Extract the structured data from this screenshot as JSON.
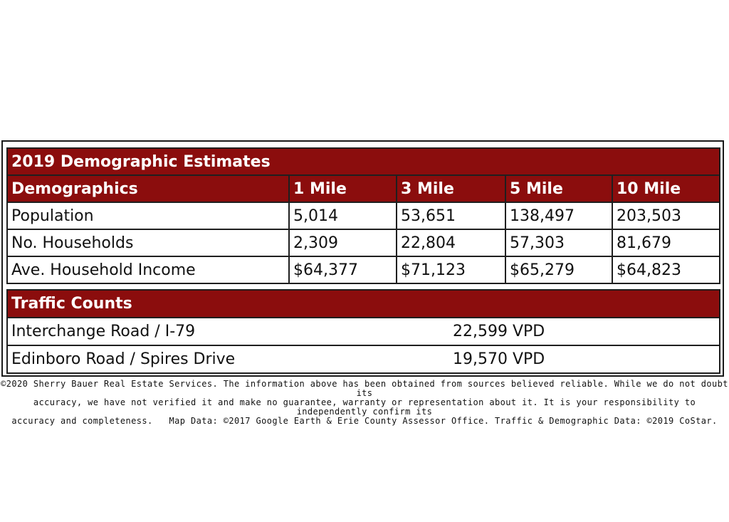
{
  "demographics_table": {
    "title": "2019 Demographic Estimates",
    "headers": [
      "Demographics",
      "1 Mile",
      "3 Mile",
      "5 Mile",
      "10 Mile"
    ],
    "rows": [
      [
        "Population",
        "5,014",
        "53,651",
        "138,497",
        "203,503"
      ],
      [
        "No. Households",
        "2,309",
        "22,804",
        "57,303",
        "81,679"
      ],
      [
        "Ave. Household Income",
        "$64,377",
        "$71,123",
        "$65,279",
        "$64,823"
      ]
    ]
  },
  "traffic_table": {
    "title": "Traffic Counts",
    "rows": [
      [
        "Interchange Road / I-79",
        "22,599 VPD"
      ],
      [
        "Edinboro Road / Spires Drive",
        "19,570 VPD"
      ]
    ]
  },
  "disclaimer": {
    "line1": "©2020 Sherry Bauer Real Estate Services. The information above has been obtained from sources believed reliable. While we do not doubt its",
    "line2": "accuracy, we have not verified it and make no guarantee, warranty or representation about it. It is your responsibility to independently confirm its",
    "line3": "accuracy and completeness.   Map Data: ©2017 Google Earth & Erie County Assessor Office. Traffic & Demographic Data: ©2019 CoStar."
  },
  "colors": {
    "header_bg": "#8b0d0d",
    "header_text": "#ffffff",
    "border": "#1f1f1f"
  }
}
